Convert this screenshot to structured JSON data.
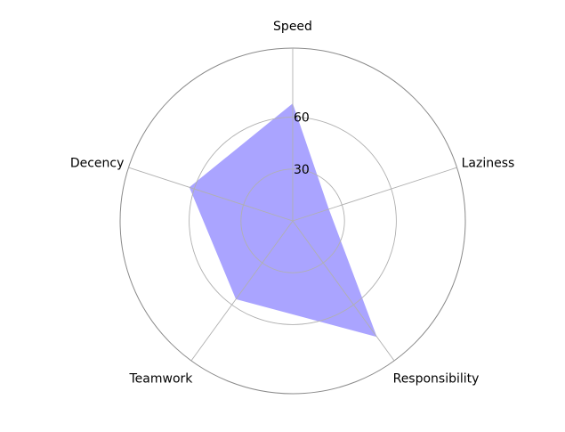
{
  "chart_data": {
    "type": "radar",
    "categories": [
      "Speed",
      "Laziness",
      "Responsibility",
      "Teamwork",
      "Decency"
    ],
    "series": [
      {
        "values": [
          68,
          22,
          83,
          56,
          63
        ]
      }
    ],
    "rgrid_values": [
      30,
      60
    ],
    "rgrid_labels": [
      "30",
      "60"
    ],
    "rlim": [
      0,
      100
    ],
    "fill_color": "#aaa4ff",
    "grid_color": "#b0b0b0",
    "outer_ring_color": "#8a8a8a",
    "grid": true
  }
}
